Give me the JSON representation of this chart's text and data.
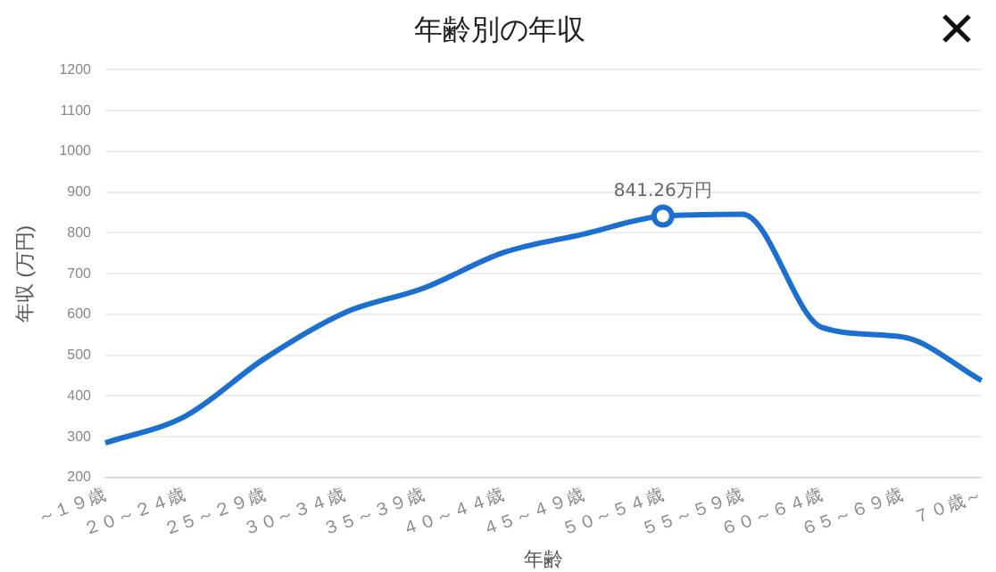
{
  "chart_data": {
    "type": "line",
    "title": "年齢別の年収",
    "xlabel": "年齢",
    "ylabel": "年収 (万円)",
    "categories": [
      "～１９歳",
      "２０～２４歳",
      "２５～２９歳",
      "３０～３４歳",
      "３５～３９歳",
      "４０～４４歳",
      "４５～４９歳",
      "５０～５４歳",
      "５５～５９歳",
      "６０～６４歳",
      "６５～６９歳",
      "７０歳～"
    ],
    "series": [
      {
        "color": "#1a6fd0",
        "values": [
          285,
          350,
          492,
          604,
          665,
          752,
          797,
          841.26,
          846,
          568,
          545,
          438
        ],
        "value_labels": [
          null,
          null,
          null,
          null,
          null,
          null,
          null,
          "841.26万円",
          null,
          null,
          null,
          null
        ]
      }
    ],
    "ylim": [
      200,
      1200
    ],
    "yticks": [
      200,
      300,
      400,
      500,
      600,
      700,
      800,
      900,
      1000,
      1100,
      1200
    ],
    "grid": "y",
    "legend": false,
    "marker": "none",
    "line_style": "solid"
  }
}
